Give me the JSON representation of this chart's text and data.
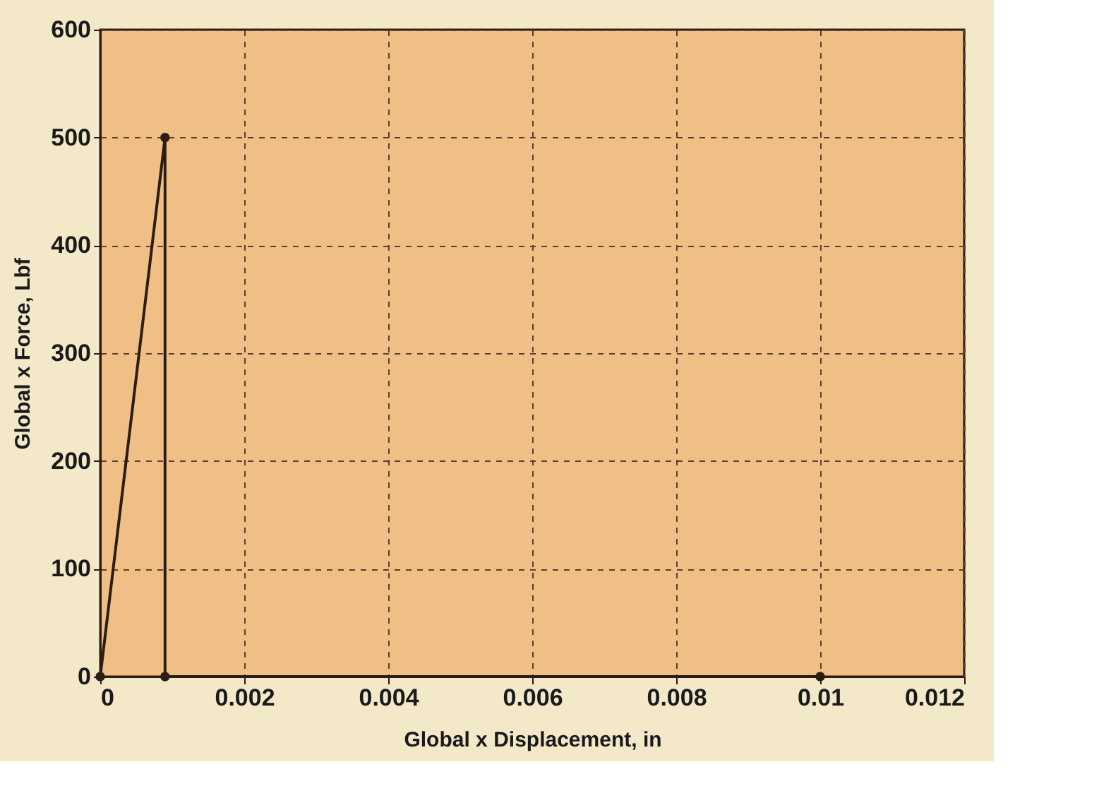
{
  "chart_data": {
    "type": "line",
    "xlabel": "Global x Displacement, in",
    "ylabel": "Global x Force, Lbf",
    "x": [
      0,
      0.0009,
      0.0009,
      0.01
    ],
    "series": [
      {
        "color": "#2b1d12",
        "values": [
          0,
          500,
          0,
          0
        ]
      }
    ],
    "xlim": [
      0,
      0.012
    ],
    "xticks": [
      0,
      0.002,
      0.004,
      0.006,
      0.008,
      0.01,
      0.012
    ],
    "ylim": [
      0,
      600
    ],
    "yticks": [
      0,
      100,
      200,
      300,
      400,
      500,
      600
    ],
    "grid": true,
    "marker": "circle",
    "line_style": "solid"
  }
}
